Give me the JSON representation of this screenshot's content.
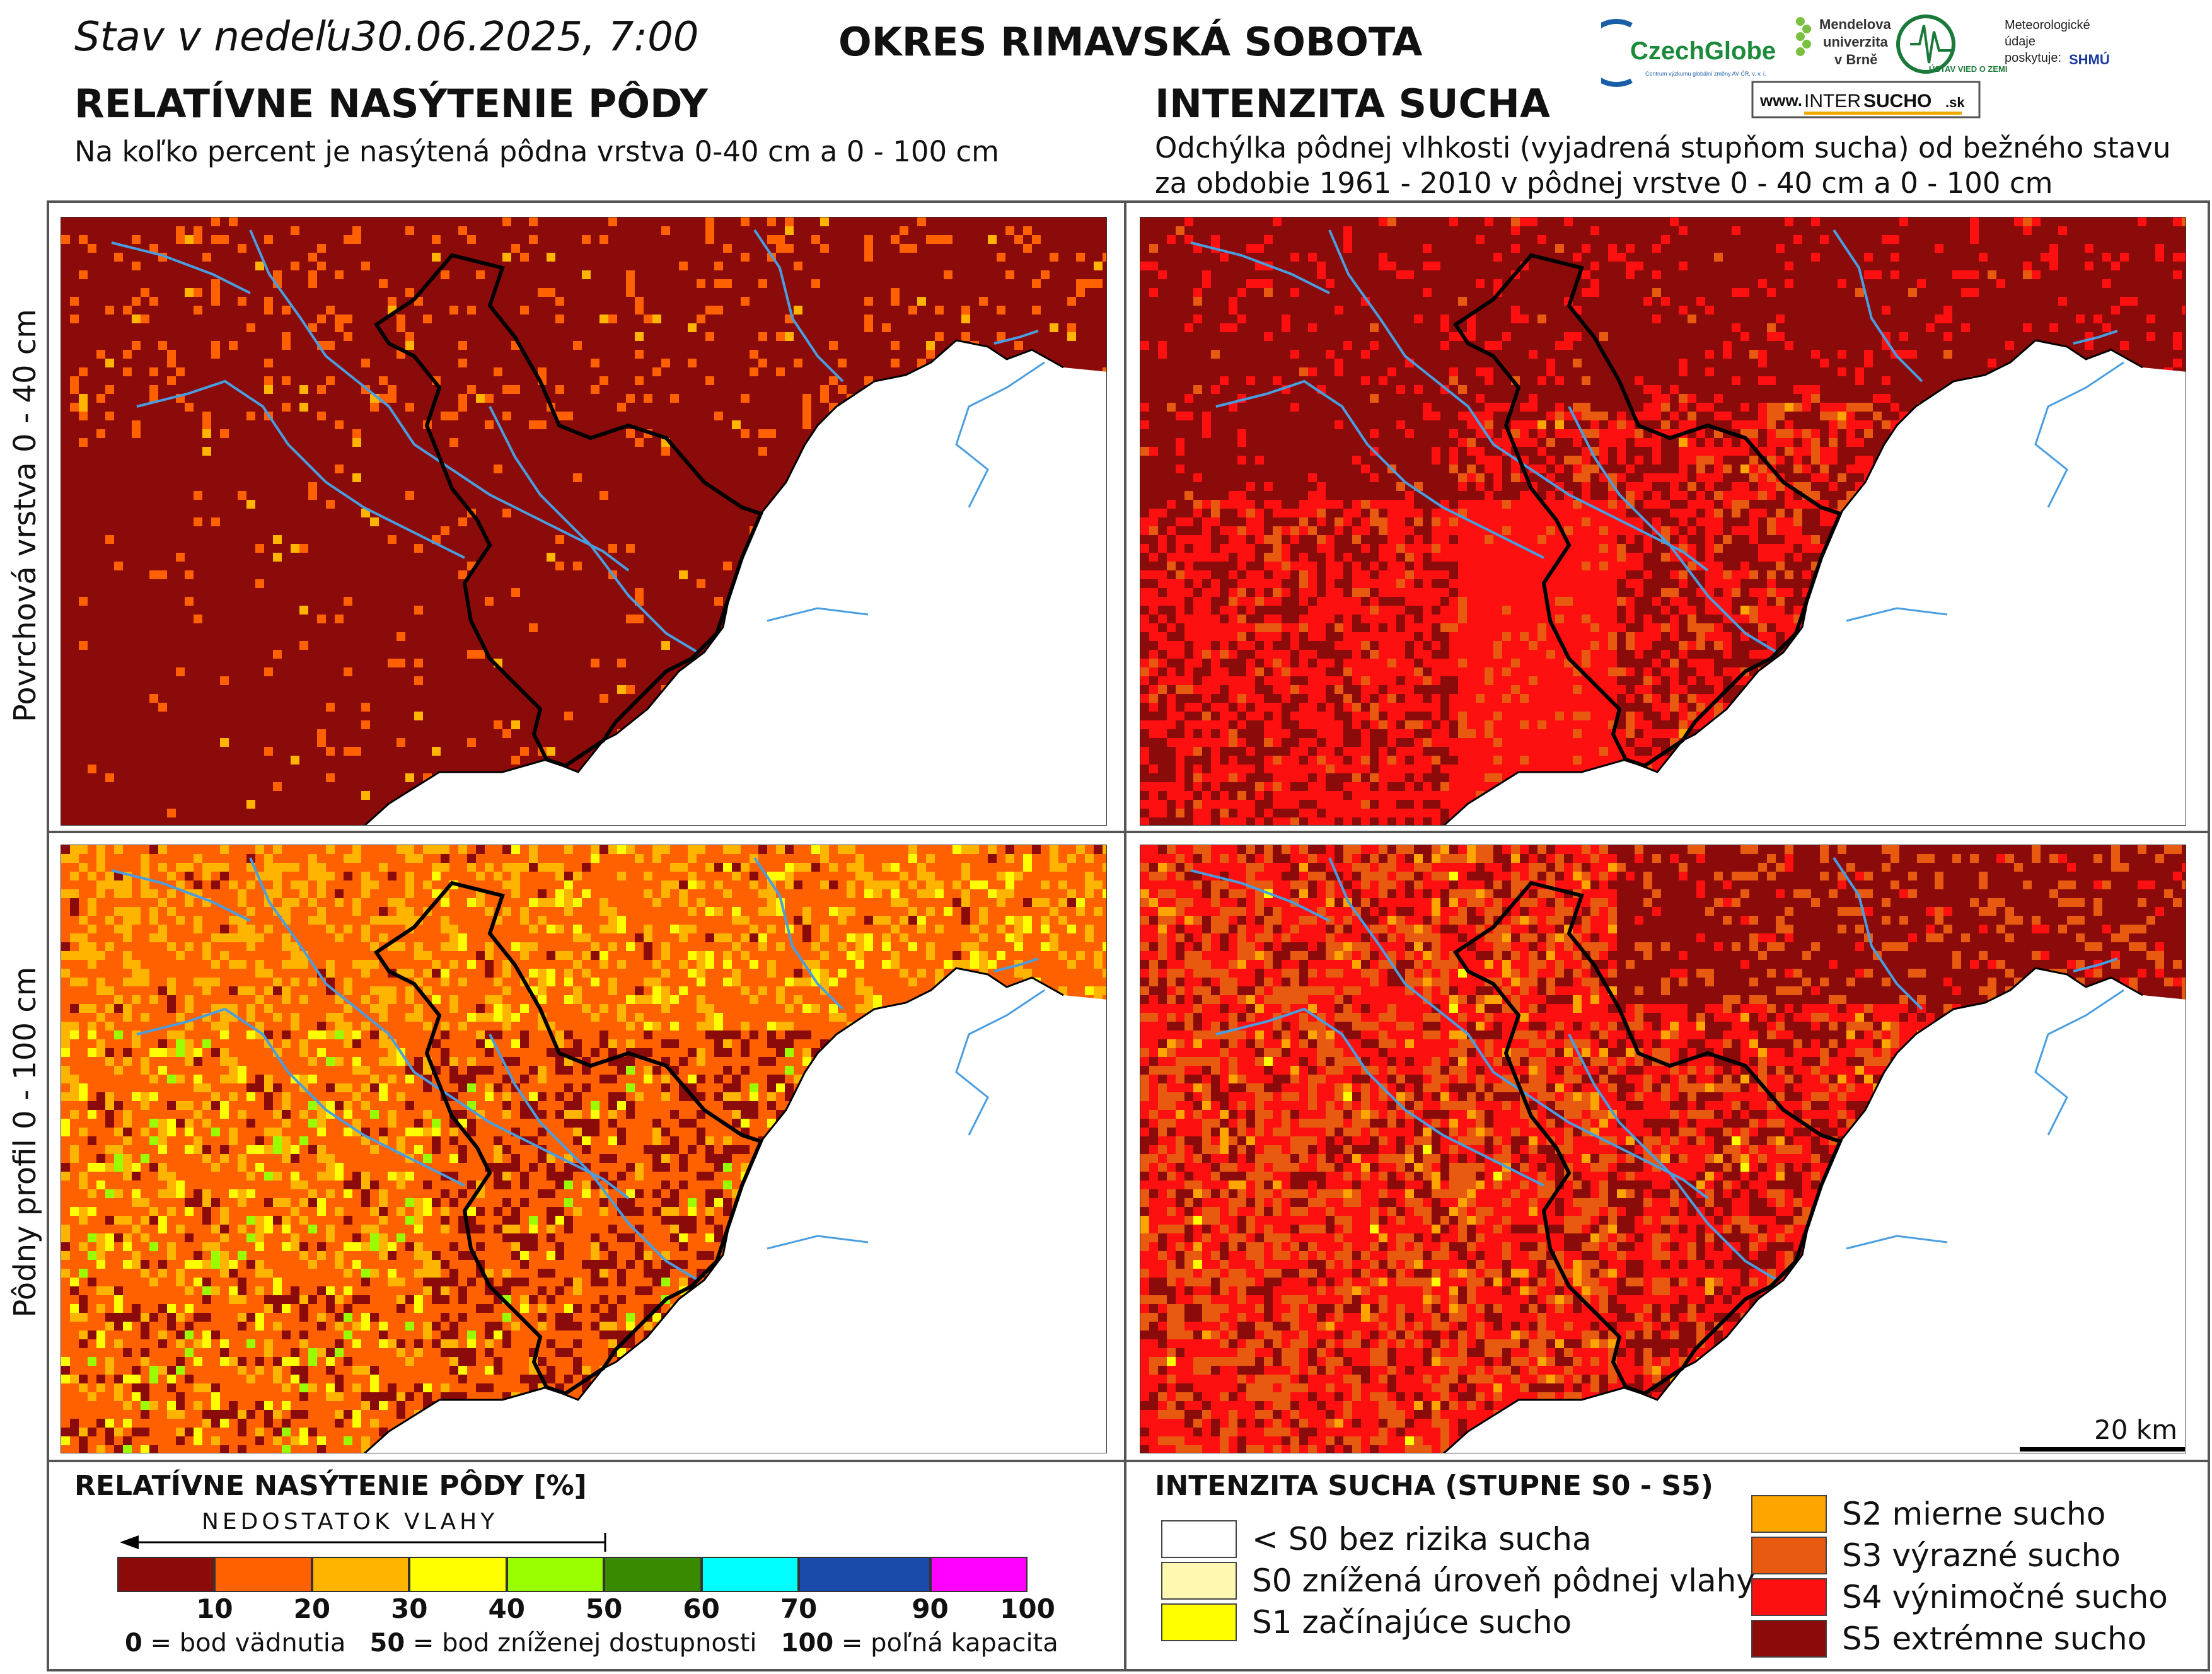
{
  "header": {
    "date_prefix": "Stav v nedeľu",
    "date_value": "30.06.2025, 7:00",
    "district": "OKRES  RIMAVSKÁ SOBOTA"
  },
  "left_section": {
    "title": "RELATÍVNE NASÝTENIE PÔDY",
    "subtitle": "Na koľko percent je nasýtená pôdna vrstva 0-40 cm a 0 - 100 cm"
  },
  "right_section": {
    "title": "INTENZITA SUCHA",
    "subtitle_line1": "Odchýlka pôdnej vlhkosti (vyjadrená stupňom sucha) od bežného stavu",
    "subtitle_line2": "za obdobie 1961 - 2010 v pôdnej vrstve 0 - 40 cm a 0 - 100 cm"
  },
  "logos": {
    "czechglobe": "CzechGlobe",
    "czechglobe_sub": "Centrum výzkumu globální změny AV ČR, v. v. i.",
    "mendel_line1": "Mendelova",
    "mendel_line2": "univerzita",
    "mendel_line3": "v Brně",
    "ustav": "ÚSTAV VIED O ZEMI",
    "meteo_line1": "Meteorologické",
    "meteo_line2": "údaje",
    "meteo_line3": "poskytuje:",
    "shmu": "SHMÚ",
    "intersucho_prefix": "www.",
    "intersucho_a": "INTER",
    "intersucho_b": "SUCHO",
    "intersucho_c": ".sk"
  },
  "row_labels": {
    "top": "Povrchová vrstva 0 - 40 cm",
    "bottom": "Pôdny profil 0 - 100 cm"
  },
  "scale_bar": {
    "label": "20 km"
  },
  "saturation_legend": {
    "title": "RELATÍVNE NASÝTENIE PÔDY [%]",
    "arrow_label": "NEDOSTATOK VLAHY",
    "colors": [
      "#8b0a0a",
      "#ff6000",
      "#ffb400",
      "#ffff00",
      "#99ff00",
      "#3a8a00",
      "#00ffff",
      "#1a4aaa",
      "#ff00ff"
    ],
    "ticks": [
      "10",
      "20",
      "30",
      "40",
      "50",
      "60",
      "70",
      "90",
      "100"
    ],
    "note_a_num": "0",
    "note_a_text": " = bod vädnutia",
    "note_b_num": "50",
    "note_b_text": " = bod zníženej dostupnosti",
    "note_c_num": "100",
    "note_c_text": " = poľná kapacita"
  },
  "drought_legend": {
    "title": "INTENZITA SUCHA (STUPNE S0 - S5)",
    "left_items": [
      {
        "color": "#ffffff",
        "label": "< S0 bez rizika sucha"
      },
      {
        "color": "#fff8b0",
        "label": "S0 znížená úroveň pôdnej vlahy"
      },
      {
        "color": "#ffff00",
        "label": "S1 začínajúce sucho"
      }
    ],
    "right_items": [
      {
        "color": "#ffa500",
        "label": "S2 mierne sucho"
      },
      {
        "color": "#e85a10",
        "label": "S3 výrazné sucho"
      },
      {
        "color": "#ff1010",
        "label": "S4 výnimočné sucho"
      },
      {
        "color": "#8b0a0a",
        "label": "S5 extrémne sucho"
      }
    ]
  },
  "map_colors": {
    "water": "#4a9ee0",
    "border": "#000000",
    "no_data": "#ffffff"
  }
}
